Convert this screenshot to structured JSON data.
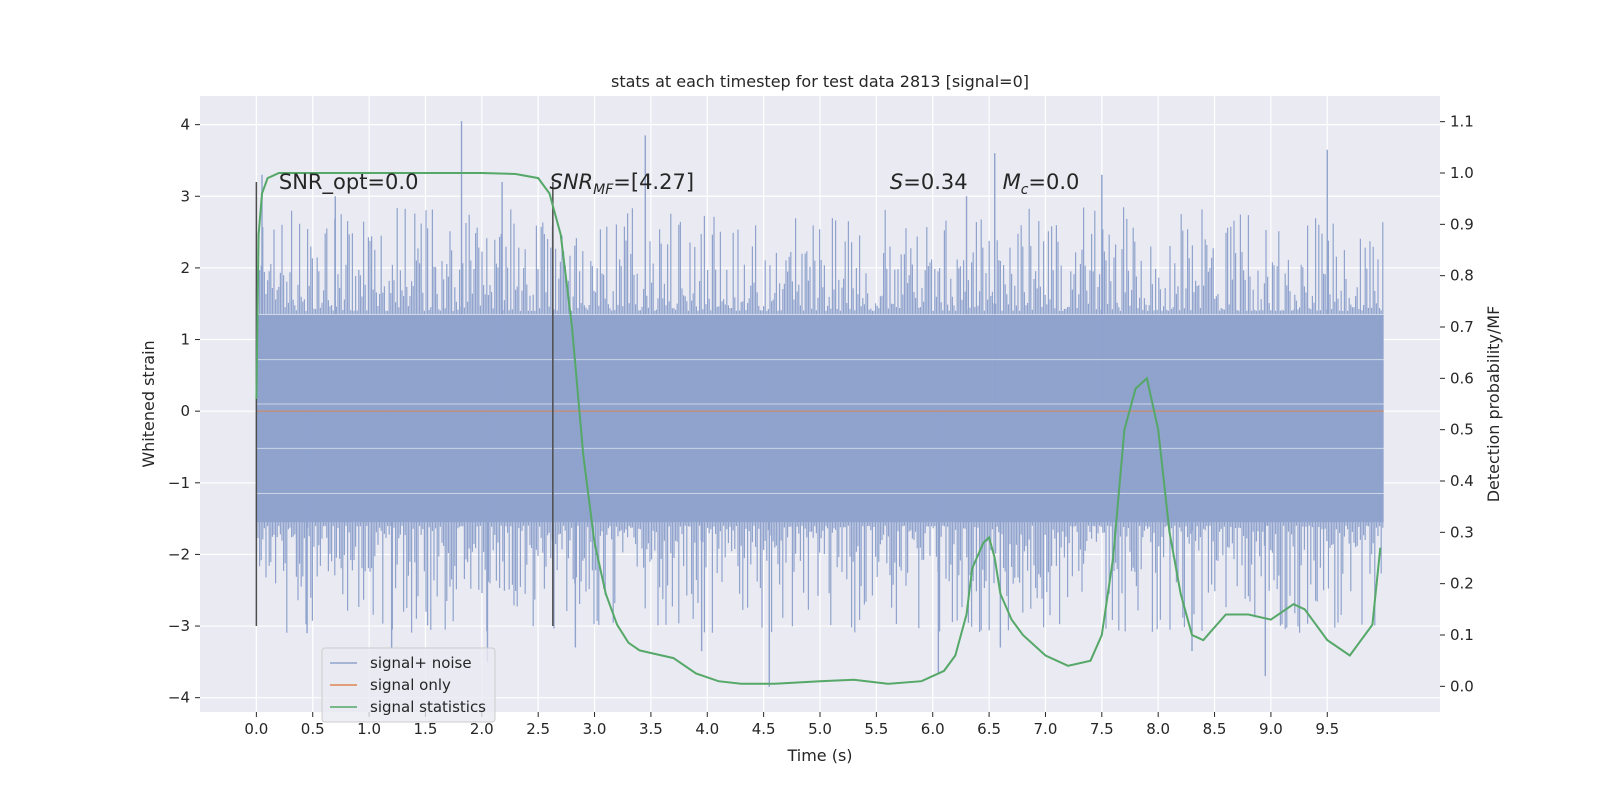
{
  "chart_data": {
    "type": "line",
    "title": "stats at each timestep for test data 2813 [signal=0]",
    "xlabel": "Time (s)",
    "ylabel": "Whitened strain",
    "ylabel_right": "Detection probability/MF",
    "xlim": [
      -0.5,
      10.5
    ],
    "ylim": [
      -4.2,
      4.4
    ],
    "ylim_right": [
      -0.05,
      1.15
    ],
    "x_ticks": [
      0.0,
      0.5,
      1.0,
      1.5,
      2.0,
      2.5,
      3.0,
      3.5,
      4.0,
      4.5,
      5.0,
      5.5,
      6.0,
      6.5,
      7.0,
      7.5,
      8.0,
      8.5,
      9.0,
      9.5
    ],
    "x_tick_labels": [
      "0.0",
      "0.5",
      "1.0",
      "1.5",
      "2.0",
      "2.5",
      "3.0",
      "3.5",
      "4.0",
      "4.5",
      "5.0",
      "5.5",
      "6.0",
      "6.5",
      "7.0",
      "7.5",
      "8.0",
      "8.5",
      "9.0",
      "9.5"
    ],
    "y_ticks": [
      -4,
      -3,
      -2,
      -1,
      0,
      1,
      2,
      3,
      4
    ],
    "y_tick_labels": [
      "−4",
      "−3",
      "−2",
      "−1",
      "0",
      "1",
      "2",
      "3",
      "4"
    ],
    "y_ticks_right": [
      0.0,
      0.1,
      0.2,
      0.3,
      0.4,
      0.5,
      0.6,
      0.7,
      0.8,
      0.9,
      1.0,
      1.1
    ],
    "y_tick_labels_right": [
      "0.0",
      "0.1",
      "0.2",
      "0.3",
      "0.4",
      "0.5",
      "0.6",
      "0.7",
      "0.8",
      "0.9",
      "1.0",
      "1.1"
    ],
    "grid": true,
    "legend_position": "lower-left",
    "series": [
      {
        "name": "signal+ noise",
        "color": "#8fa3cd",
        "axis": "left",
        "kind": "noise band",
        "x_range": [
          0.0,
          10.0
        ],
        "peak_x": [
          0.05,
          0.7,
          1.82,
          2.18,
          3.45,
          6.3,
          6.55,
          7.5,
          9.5
        ],
        "peak_y": [
          3.3,
          3.0,
          4.05,
          3.2,
          3.85,
          3.0,
          3.6,
          3.3,
          3.65
        ],
        "trough_x": [
          0.45,
          1.2,
          2.05,
          2.83,
          3.95,
          4.55,
          6.05,
          6.6,
          8.3,
          8.95
        ],
        "trough_y": [
          -3.1,
          -3.3,
          -3.5,
          -3.3,
          -3.35,
          -3.85,
          -3.65,
          -3.3,
          -3.35,
          -3.7
        ]
      },
      {
        "name": "signal only",
        "color": "#dd8452",
        "axis": "left",
        "x": [
          0.0,
          10.0
        ],
        "y": [
          0.0,
          0.0
        ]
      },
      {
        "name": "signal statistics",
        "color": "#55a868",
        "axis": "right",
        "x": [
          0.0,
          0.02,
          0.05,
          0.1,
          0.15,
          0.2,
          0.3,
          0.5,
          1.0,
          1.5,
          2.0,
          2.3,
          2.5,
          2.6,
          2.7,
          2.8,
          2.9,
          3.0,
          3.1,
          3.2,
          3.3,
          3.4,
          3.5,
          3.7,
          3.9,
          4.1,
          4.3,
          4.6,
          5.0,
          5.3,
          5.6,
          5.9,
          6.1,
          6.2,
          6.3,
          6.35,
          6.45,
          6.5,
          6.55,
          6.6,
          6.7,
          6.8,
          7.0,
          7.2,
          7.4,
          7.5,
          7.6,
          7.7,
          7.8,
          7.9,
          8.0,
          8.1,
          8.2,
          8.3,
          8.4,
          8.6,
          8.8,
          9.0,
          9.2,
          9.3,
          9.5,
          9.7,
          9.9,
          9.97
        ],
        "y": [
          0.56,
          0.88,
          0.96,
          0.99,
          0.995,
          1.0,
          1.0,
          1.0,
          1.0,
          1.0,
          1.0,
          0.998,
          0.99,
          0.96,
          0.88,
          0.7,
          0.45,
          0.28,
          0.18,
          0.12,
          0.085,
          0.07,
          0.065,
          0.055,
          0.025,
          0.01,
          0.005,
          0.005,
          0.01,
          0.013,
          0.005,
          0.01,
          0.03,
          0.06,
          0.14,
          0.23,
          0.28,
          0.29,
          0.25,
          0.18,
          0.13,
          0.1,
          0.06,
          0.04,
          0.05,
          0.1,
          0.25,
          0.5,
          0.58,
          0.6,
          0.5,
          0.3,
          0.18,
          0.1,
          0.09,
          0.14,
          0.14,
          0.13,
          0.16,
          0.15,
          0.09,
          0.06,
          0.12,
          0.27
        ]
      }
    ],
    "vlines": [
      {
        "x": 0.0,
        "y": [
          -3.0,
          3.2
        ],
        "color": "#4d4d4d"
      },
      {
        "x": 2.63,
        "y": [
          -3.0,
          3.2
        ],
        "color": "#4d4d4d"
      }
    ],
    "annotations": [
      {
        "text": "SNR_opt=0.0",
        "x": 0.2,
        "y": 3.1
      },
      {
        "text_main": "SNR",
        "text_sub": "MF",
        "text_rest": "=[4.27]",
        "x": 2.6,
        "y": 3.1
      },
      {
        "text_main": "S",
        "text_rest": "=0.34",
        "x": 5.62,
        "y": 3.1
      },
      {
        "text_main": "M",
        "text_sub": "c",
        "text_rest": "=0.0",
        "x": 6.62,
        "y": 3.1
      }
    ]
  }
}
